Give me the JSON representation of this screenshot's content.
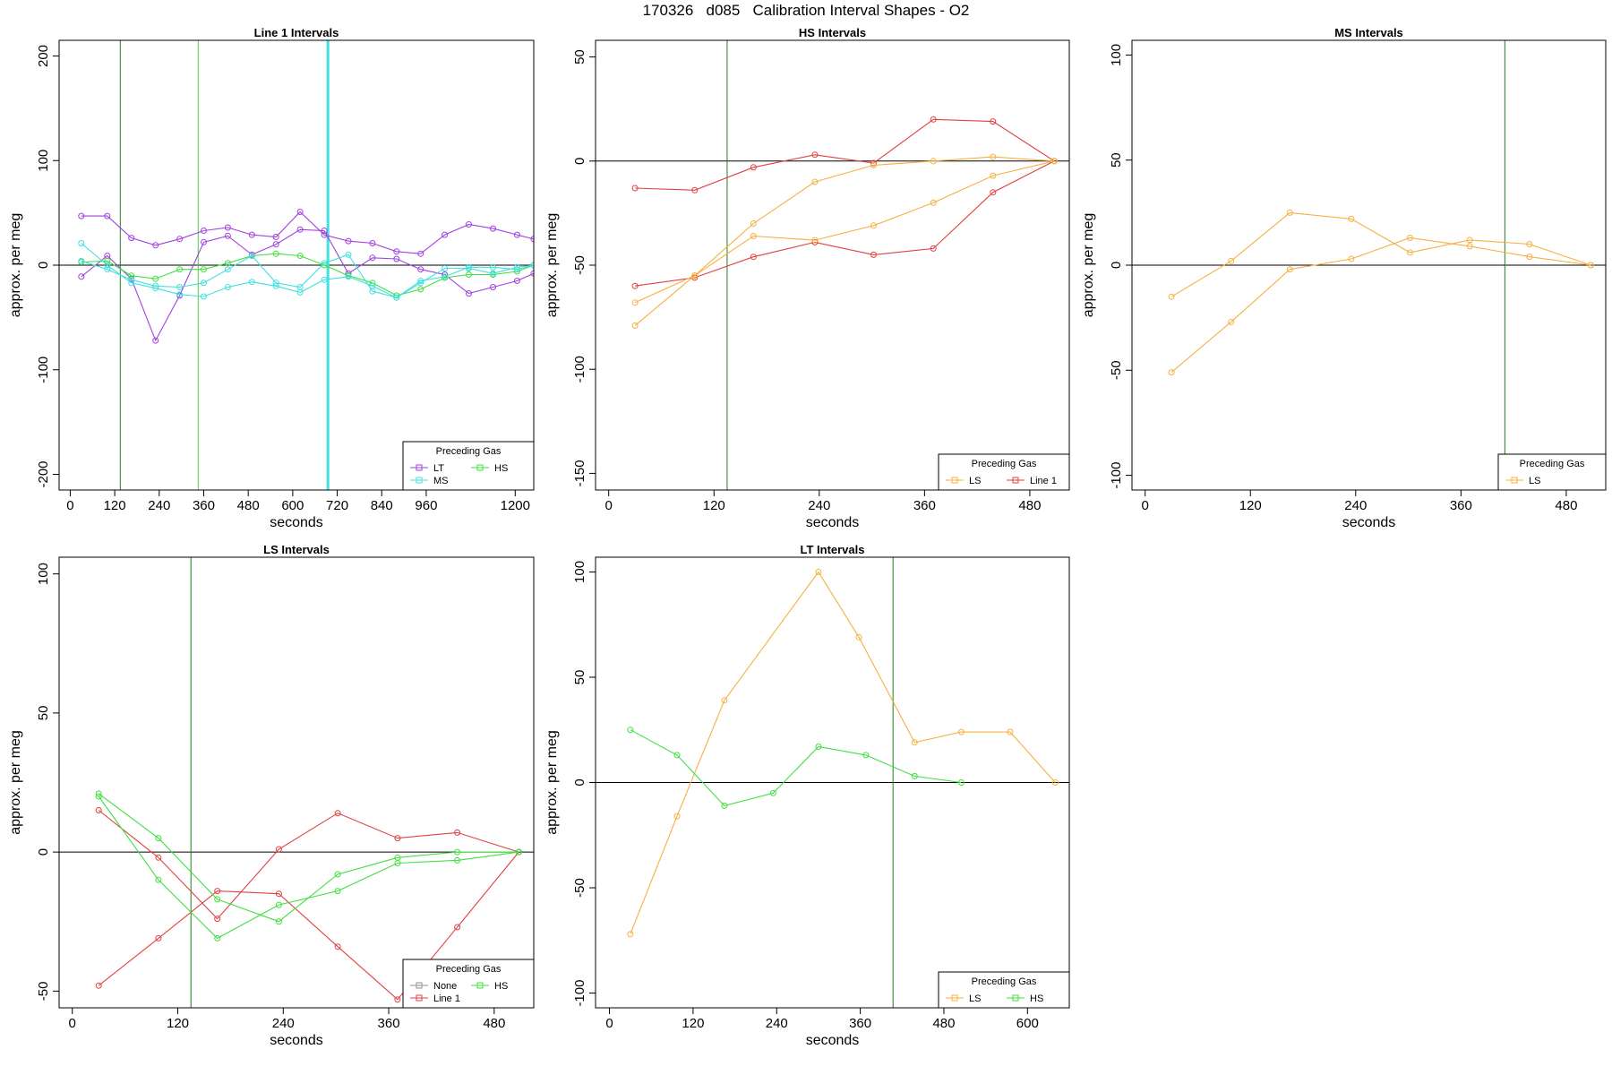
{
  "page_title": "170326   d085   Calibration Interval Shapes - O2",
  "colors": {
    "LT": "#a040e0",
    "HS": "#40e040",
    "MS": "#40e0e0",
    "LS": "#f5b040",
    "Line 1": "#e04040",
    "None": "#909090",
    "vline_dark": "#208020",
    "vline_light": "#40d040",
    "vline_cyan": "#40e0e0"
  },
  "chart_data": [
    {
      "type": "line",
      "title": "Line 1 Intervals",
      "xlabel": "seconds",
      "ylabel": "approx. per meg",
      "xlim": [
        -30,
        1250
      ],
      "ylim": [
        -215,
        215
      ],
      "xticks": [
        0,
        120,
        240,
        360,
        480,
        600,
        720,
        840,
        960,
        1200
      ],
      "xtick_labels": [
        "0",
        "120",
        "240",
        "360",
        "480",
        "600",
        "720",
        "840",
        "960",
        "1200"
      ],
      "yticks": [
        -200,
        -100,
        0,
        100,
        200
      ],
      "hline": 0,
      "vlines": [
        {
          "x": 135,
          "color": "vline_dark",
          "width": 1
        },
        {
          "x": 345,
          "color": "vline_light",
          "width": 1
        },
        {
          "x": 695,
          "color": "vline_cyan",
          "width": 3
        }
      ],
      "legend": {
        "title": "Preceding Gas",
        "position": "bottom-right",
        "cols": 2,
        "entries": [
          "LT",
          "HS",
          "MS"
        ]
      },
      "series": [
        {
          "key": "LT",
          "x": [
            30,
            100,
            165,
            230,
            295,
            360,
            425,
            490,
            555,
            620,
            685,
            750,
            815,
            880,
            945,
            1010,
            1075,
            1140,
            1205,
            1250
          ],
          "y": [
            47,
            47,
            26,
            19,
            25,
            33,
            36,
            29,
            27,
            51,
            29,
            23,
            21,
            13,
            11,
            29,
            39,
            35,
            29,
            25
          ]
        },
        {
          "key": "LT",
          "x": [
            30,
            100,
            165,
            230,
            295,
            360,
            425,
            490,
            555,
            620,
            685,
            750,
            815,
            880,
            945,
            1010,
            1075,
            1140,
            1205,
            1250
          ],
          "y": [
            -11,
            9,
            -13,
            -72,
            -29,
            22,
            28,
            10,
            20,
            34,
            33,
            -8,
            7,
            6,
            -4,
            -9,
            -27,
            -21,
            -15,
            -8
          ]
        },
        {
          "key": "HS",
          "x": [
            30,
            100,
            165,
            230,
            295,
            360,
            425,
            490,
            555,
            620,
            685,
            750,
            815,
            880,
            945,
            1010,
            1075,
            1140,
            1205,
            1250
          ],
          "y": [
            3,
            4,
            -10,
            -13,
            -4,
            -4,
            2,
            9,
            11,
            9,
            0,
            -10,
            -17,
            -29,
            -23,
            -12,
            -9,
            -9,
            -6,
            0
          ]
        },
        {
          "key": "MS",
          "x": [
            30,
            100,
            165,
            230,
            295,
            360,
            425,
            490,
            555,
            620,
            685,
            750,
            815,
            880,
            945,
            1010,
            1075,
            1140,
            1205,
            1250
          ],
          "y": [
            21,
            0,
            -17,
            -22,
            -28,
            -30,
            -21,
            -16,
            -20,
            -26,
            -14,
            -11,
            -20,
            -31,
            -17,
            -3,
            -3,
            -8,
            -2,
            0
          ]
        },
        {
          "key": "MS",
          "x": [
            30,
            100,
            165,
            230,
            295,
            360,
            425,
            490,
            555,
            620,
            685,
            750,
            815,
            880,
            945,
            1010,
            1075,
            1140,
            1205,
            1250
          ],
          "y": [
            4,
            -4,
            -14,
            -20,
            -21,
            -17,
            -4,
            9,
            -17,
            -21,
            2,
            10,
            -25,
            -31,
            -15,
            -11,
            -2,
            -2,
            -4,
            0
          ]
        }
      ]
    },
    {
      "type": "line",
      "title": "HS Intervals",
      "xlabel": "seconds",
      "ylabel": "approx. per meg",
      "xlim": [
        -15,
        525
      ],
      "ylim": [
        -158,
        58
      ],
      "xticks": [
        0,
        120,
        240,
        360,
        480
      ],
      "xtick_labels": [
        "0",
        "120",
        "240",
        "360",
        "480"
      ],
      "yticks": [
        -150,
        -100,
        -50,
        0,
        50
      ],
      "hline": 0,
      "vlines": [
        {
          "x": 135,
          "color": "vline_dark",
          "width": 1
        }
      ],
      "legend": {
        "title": "Preceding Gas",
        "position": "bottom-right",
        "cols": 2,
        "entries": [
          "LS",
          "Line 1"
        ]
      },
      "series": [
        {
          "key": "Line 1",
          "x": [
            30,
            98,
            165,
            235,
            302,
            370,
            438,
            508
          ],
          "y": [
            -13,
            -14,
            -3,
            3,
            -1,
            20,
            19,
            0
          ]
        },
        {
          "key": "Line 1",
          "x": [
            30,
            98,
            165,
            235,
            302,
            370,
            438,
            508
          ],
          "y": [
            -60,
            -56,
            -46,
            -39,
            -45,
            -42,
            -15,
            0
          ]
        },
        {
          "key": "LS",
          "x": [
            30,
            98,
            165,
            235,
            302,
            370,
            438,
            508
          ],
          "y": [
            -68,
            -55,
            -30,
            -10,
            -2,
            0,
            2,
            0
          ]
        },
        {
          "key": "LS",
          "x": [
            30,
            98,
            165,
            235,
            302,
            370,
            438,
            508
          ],
          "y": [
            -79,
            -55,
            -36,
            -38,
            -31,
            -20,
            -7,
            0
          ]
        }
      ]
    },
    {
      "type": "line",
      "title": "MS Intervals",
      "xlabel": "seconds",
      "ylabel": "approx. per meg",
      "xlim": [
        -15,
        525
      ],
      "ylim": [
        -107,
        107
      ],
      "xticks": [
        0,
        120,
        240,
        360,
        480
      ],
      "xtick_labels": [
        "0",
        "120",
        "240",
        "360",
        "480"
      ],
      "yticks": [
        -100,
        -50,
        0,
        50,
        100
      ],
      "hline": 0,
      "vlines": [
        {
          "x": 410,
          "color": "vline_dark",
          "width": 1
        }
      ],
      "legend": {
        "title": "Preceding Gas",
        "position": "bottom-right",
        "cols": 1,
        "entries": [
          "LS"
        ]
      },
      "series": [
        {
          "key": "LS",
          "x": [
            30,
            98,
            165,
            235,
            302,
            370,
            438,
            508
          ],
          "y": [
            -15,
            2,
            25,
            22,
            6,
            12,
            10,
            0
          ]
        },
        {
          "key": "LS",
          "x": [
            30,
            98,
            165,
            235,
            302,
            370,
            438,
            508
          ],
          "y": [
            -51,
            -27,
            -2,
            3,
            13,
            9,
            4,
            0
          ]
        }
      ]
    },
    {
      "type": "line",
      "title": "LS Intervals",
      "xlabel": "seconds",
      "ylabel": "approx. per meg",
      "xlim": [
        -15,
        525
      ],
      "ylim": [
        -56,
        106
      ],
      "xticks": [
        0,
        120,
        240,
        360,
        480
      ],
      "xtick_labels": [
        "0",
        "120",
        "240",
        "360",
        "480"
      ],
      "yticks": [
        -50,
        0,
        50,
        100
      ],
      "hline": 0,
      "vlines": [
        {
          "x": 135,
          "color": "vline_dark",
          "width": 1
        }
      ],
      "legend": {
        "title": "Preceding Gas",
        "position": "bottom-right",
        "cols": 2,
        "entries": [
          "None",
          "HS",
          "Line 1"
        ]
      },
      "series": [
        {
          "key": "Line 1",
          "x": [
            30,
            98,
            165,
            235,
            302,
            370,
            438,
            508
          ],
          "y": [
            15,
            -2,
            -24,
            1,
            14,
            5,
            7,
            0
          ]
        },
        {
          "key": "Line 1",
          "x": [
            30,
            98,
            165,
            235,
            302,
            370,
            438,
            508
          ],
          "y": [
            -48,
            -31,
            -14,
            -15,
            -34,
            -53,
            -27,
            0
          ]
        },
        {
          "key": "HS",
          "x": [
            30,
            98,
            165,
            235,
            302,
            370,
            438,
            508
          ],
          "y": [
            21,
            5,
            -17,
            -25,
            -8,
            -2,
            0,
            0
          ]
        },
        {
          "key": "HS",
          "x": [
            30,
            98,
            165,
            235,
            302,
            370,
            438,
            508
          ],
          "y": [
            20,
            -10,
            -31,
            -19,
            -14,
            -4,
            -3,
            0
          ]
        }
      ]
    },
    {
      "type": "line",
      "title": "LT Intervals",
      "xlabel": "seconds",
      "ylabel": "approx. per meg",
      "xlim": [
        -20,
        660
      ],
      "ylim": [
        -107,
        107
      ],
      "xticks": [
        0,
        120,
        240,
        360,
        480,
        600
      ],
      "xtick_labels": [
        "0",
        "120",
        "240",
        "360",
        "480",
        "600"
      ],
      "yticks": [
        -100,
        -50,
        0,
        50,
        100
      ],
      "hline": 0,
      "vlines": [
        {
          "x": 407,
          "color": "vline_dark",
          "width": 1
        }
      ],
      "legend": {
        "title": "Preceding Gas",
        "position": "bottom-right",
        "cols": 2,
        "entries": [
          "LS",
          "HS"
        ]
      },
      "series": [
        {
          "key": "LS",
          "x": [
            30,
            97,
            165,
            300,
            358,
            438,
            505,
            575,
            640
          ],
          "y": [
            -72,
            -16,
            39,
            100,
            69,
            19,
            24,
            24,
            0
          ]
        },
        {
          "key": "HS",
          "x": [
            30,
            97,
            165,
            235,
            300,
            368,
            438,
            505
          ],
          "y": [
            25,
            13,
            -11,
            -5,
            17,
            13,
            3,
            0
          ]
        }
      ]
    }
  ]
}
